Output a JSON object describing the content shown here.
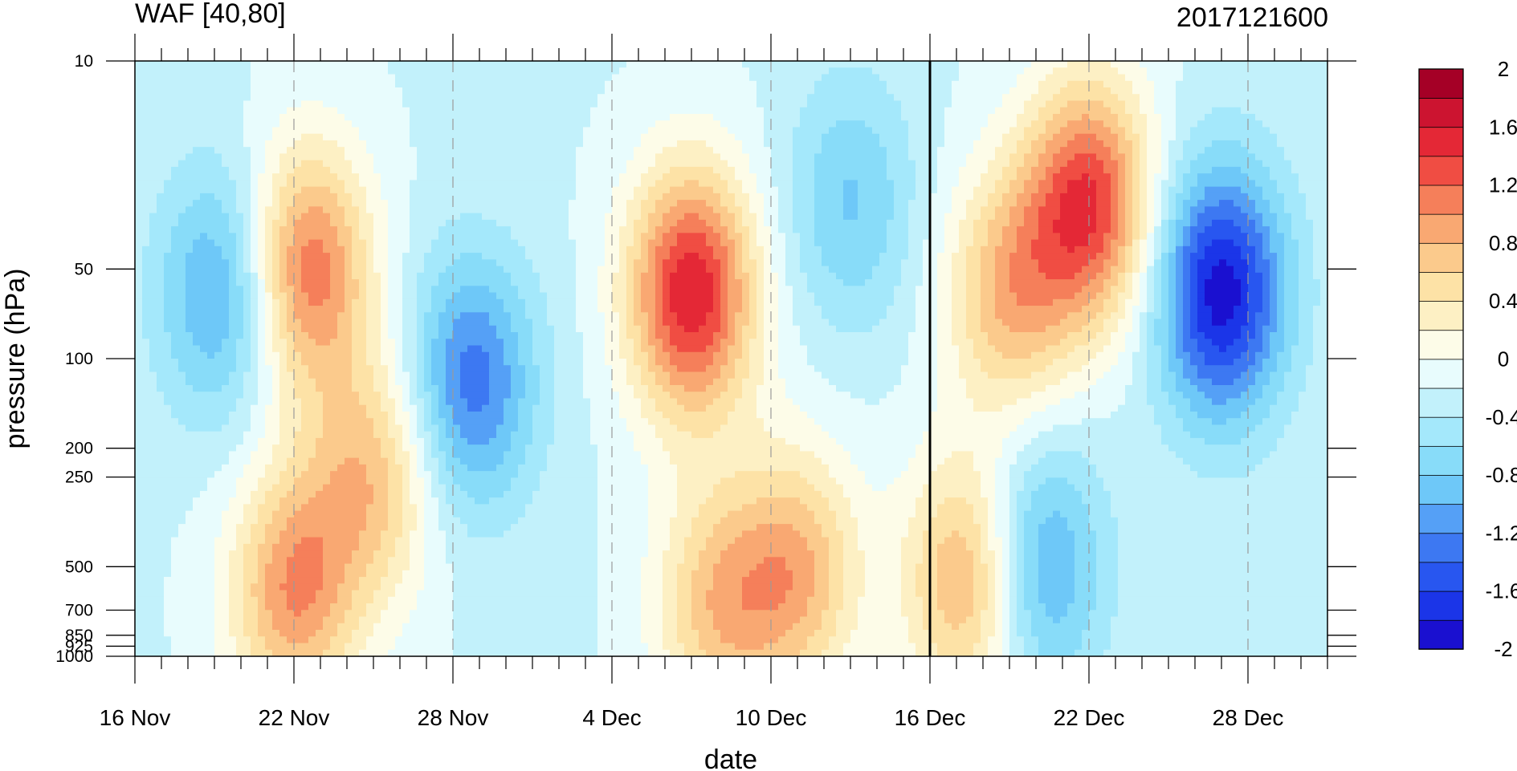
{
  "chart_data": {
    "type": "heatmap",
    "title_left": "WAF [40,80]",
    "title_right": "2017121600",
    "xlabel": "date",
    "ylabel": "pressure (hPa)",
    "y_scale": "log",
    "y_reversed": true,
    "ylim": [
      1000,
      10
    ],
    "xlim": [
      0,
      45
    ],
    "x_start_date": "16 Nov",
    "x_tick_labels": [
      "16 Nov",
      "22 Nov",
      "28 Nov",
      "4 Dec",
      "10 Dec",
      "16 Dec",
      "22 Dec",
      "28 Dec"
    ],
    "x_tick_positions_days": [
      0,
      6,
      12,
      18,
      24,
      30,
      36,
      42
    ],
    "y_ticks": [
      10,
      50,
      100,
      200,
      250,
      500,
      700,
      850,
      925,
      1000
    ],
    "y_tick_labels": [
      "10",
      "50",
      "100",
      "200",
      "250",
      "500",
      "700",
      "850",
      "925",
      "1000"
    ],
    "current_date_line_day": 30,
    "dashed_grid_days": [
      6,
      12,
      18,
      24,
      36,
      42
    ],
    "colorbar": {
      "levels": [
        -2,
        -1.8,
        -1.6,
        -1.4,
        -1.2,
        -1.0,
        -0.8,
        -0.6,
        -0.4,
        -0.2,
        0,
        0.2,
        0.4,
        0.6,
        0.8,
        1.0,
        1.2,
        1.4,
        1.6,
        1.8,
        2
      ],
      "labels": [
        "2",
        "1.6",
        "1.2",
        "0.8",
        "0.4",
        "0",
        "-0.4",
        "-0.8",
        "-1.2",
        "-1.6",
        "-2"
      ],
      "label_values": [
        2,
        1.6,
        1.2,
        0.8,
        0.4,
        0,
        -0.4,
        -0.8,
        -1.2,
        -1.6,
        -2
      ],
      "colors": [
        "#1a10d0",
        "#1b35e8",
        "#2856f0",
        "#3d78f2",
        "#55a0f6",
        "#6ec8f8",
        "#88dcf9",
        "#a4e8fb",
        "#c2f1fb",
        "#e8fcfd",
        "#fdfce8",
        "#fdf0c4",
        "#fde2a6",
        "#fbca8c",
        "#f9a872",
        "#f57f5a",
        "#f04d43",
        "#e42836",
        "#cc1430",
        "#a50026"
      ]
    },
    "features": [
      {
        "center_day": 6.5,
        "center_p": 50,
        "amplitude": 1.4
      },
      {
        "center_day": 21,
        "center_p": 60,
        "amplitude": 1.8
      },
      {
        "center_day": 36,
        "center_p": 30,
        "amplitude": 1.6
      },
      {
        "center_day": 41,
        "center_p": 60,
        "amplitude": -1.7
      },
      {
        "center_day": 12.7,
        "center_p": 120,
        "amplitude": -1.1
      },
      {
        "center_day": 3.3,
        "center_p": 60,
        "amplitude": -0.9
      },
      {
        "center_day": 6,
        "center_p": 600,
        "amplitude": 1.2
      },
      {
        "center_day": 9,
        "center_p": 250,
        "amplitude": 0.9
      },
      {
        "center_day": 31.5,
        "center_p": 550,
        "amplitude": 1.2
      },
      {
        "center_day": 34,
        "center_p": 500,
        "amplitude": -1.0
      },
      {
        "center_day": 25,
        "center_p": 520,
        "amplitude": 1.0
      },
      {
        "center_day": 22,
        "center_p": 680,
        "amplitude": 0.9
      },
      {
        "center_day": 33,
        "center_p": 60,
        "amplitude": 1.0
      },
      {
        "center_day": 27,
        "center_p": 30,
        "amplitude": -0.6
      }
    ]
  }
}
